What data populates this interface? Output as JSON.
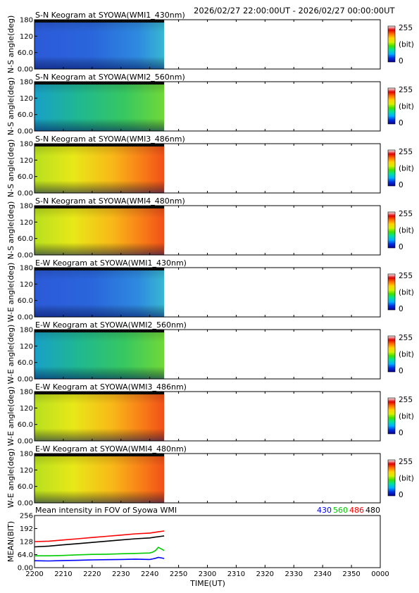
{
  "header": {
    "time_range": "2026/02/27 22:00:00UT - 2026/02/27 00:00:00UT"
  },
  "colorbar": {
    "max_label": "255",
    "unit_label": "(bit)",
    "min_label": "0",
    "stops": [
      "#0b0090",
      "#0030e0",
      "#00b0ff",
      "#00e0a0",
      "#40e000",
      "#d8f000",
      "#ffd000",
      "#ff7000",
      "#e00000",
      "#f0f0f0"
    ]
  },
  "chart_data": [
    {
      "type": "heatmap",
      "title": "S-N Keogram at SYOWA(WMI1_430nm)",
      "ylabel": "N-S angle(deg)",
      "yticks": [
        "180",
        "120",
        "60.0",
        "0.00"
      ],
      "ylim": [
        0,
        180
      ],
      "data_end_time": "2245",
      "intensity": "low",
      "color_scale": {
        "min": 0,
        "max": 255,
        "unit": "bit"
      }
    },
    {
      "type": "heatmap",
      "title": "S-N Keogram at SYOWA(WMI2_560nm)",
      "ylabel": "N-S angle(deg)",
      "yticks": [
        "180",
        "120",
        "60.0",
        "0.00"
      ],
      "ylim": [
        0,
        180
      ],
      "data_end_time": "2245",
      "intensity": "medium",
      "color_scale": {
        "min": 0,
        "max": 255,
        "unit": "bit"
      }
    },
    {
      "type": "heatmap",
      "title": "S-N Keogram at SYOWA(WMI3_486nm)",
      "ylabel": "N-S angle(deg)",
      "yticks": [
        "180",
        "120",
        "60.0",
        "0.00"
      ],
      "ylim": [
        0,
        180
      ],
      "data_end_time": "2245",
      "intensity": "high",
      "color_scale": {
        "min": 0,
        "max": 255,
        "unit": "bit"
      }
    },
    {
      "type": "heatmap",
      "title": "S-N Keogram at SYOWA(WMI4_480nm)",
      "ylabel": "N-S angle(deg)",
      "yticks": [
        "180",
        "120",
        "60.0",
        "0.00"
      ],
      "ylim": [
        0,
        180
      ],
      "data_end_time": "2245",
      "intensity": "high",
      "color_scale": {
        "min": 0,
        "max": 255,
        "unit": "bit"
      }
    },
    {
      "type": "heatmap",
      "title": "E-W Keogram at SYOWA(WMI1_430nm)",
      "ylabel": "W-E angle(deg)",
      "yticks": [
        "180",
        "120",
        "60.0",
        "0.00"
      ],
      "ylim": [
        0,
        180
      ],
      "data_end_time": "2245",
      "intensity": "low",
      "color_scale": {
        "min": 0,
        "max": 255,
        "unit": "bit"
      }
    },
    {
      "type": "heatmap",
      "title": "E-W Keogram at SYOWA(WMI2_560nm)",
      "ylabel": "W-E angle(deg)",
      "yticks": [
        "180",
        "120",
        "60.0",
        "0.00"
      ],
      "ylim": [
        0,
        180
      ],
      "data_end_time": "2245",
      "intensity": "medium",
      "color_scale": {
        "min": 0,
        "max": 255,
        "unit": "bit"
      }
    },
    {
      "type": "heatmap",
      "title": "E-W Keogram at SYOWA(WMI3_486nm)",
      "ylabel": "W-E angle(deg)",
      "yticks": [
        "180",
        "120",
        "60.0",
        "0.00"
      ],
      "ylim": [
        0,
        180
      ],
      "data_end_time": "2245",
      "intensity": "high",
      "color_scale": {
        "min": 0,
        "max": 255,
        "unit": "bit"
      }
    },
    {
      "type": "heatmap",
      "title": "E-W Keogram at SYOWA(WMI4_480nm)",
      "ylabel": "W-E angle(deg)",
      "yticks": [
        "180",
        "120",
        "60.0",
        "0.00"
      ],
      "ylim": [
        0,
        180
      ],
      "data_end_time": "2245",
      "intensity": "high",
      "color_scale": {
        "min": 0,
        "max": 255,
        "unit": "bit"
      }
    },
    {
      "type": "line",
      "title": "Mean intensity in FOV of Syowa WMI",
      "ylabel": "MEAN(BIT)",
      "xlabel": "TIME(UT)",
      "ylim": [
        0,
        256
      ],
      "yticks": [
        "256",
        "192",
        "128",
        "64.0",
        "0.00"
      ],
      "xticks": [
        "2200",
        "2210",
        "2220",
        "2230",
        "2240",
        "2250",
        "2300",
        "2310",
        "2320",
        "2330",
        "2340",
        "2350",
        "0000"
      ],
      "x_minutes": [
        0,
        5,
        10,
        15,
        20,
        25,
        30,
        35,
        40,
        41,
        42,
        43,
        44,
        45
      ],
      "series": [
        {
          "name": "430",
          "color": "#0000ff",
          "values": [
            34,
            33,
            35,
            36,
            38,
            39,
            40,
            42,
            40,
            43,
            46,
            50,
            48,
            45
          ]
        },
        {
          "name": "560",
          "color": "#00cc00",
          "values": [
            58,
            58,
            60,
            63,
            65,
            66,
            68,
            70,
            72,
            76,
            84,
            100,
            92,
            84
          ]
        },
        {
          "name": "486",
          "color": "#ff0000",
          "values": [
            128,
            130,
            136,
            142,
            148,
            154,
            160,
            166,
            170,
            172,
            174,
            176,
            178,
            180
          ]
        },
        {
          "name": "480",
          "color": "#000000",
          "values": [
            102,
            106,
            112,
            118,
            124,
            130,
            136,
            142,
            146,
            148,
            150,
            152,
            154,
            156
          ]
        }
      ]
    }
  ]
}
